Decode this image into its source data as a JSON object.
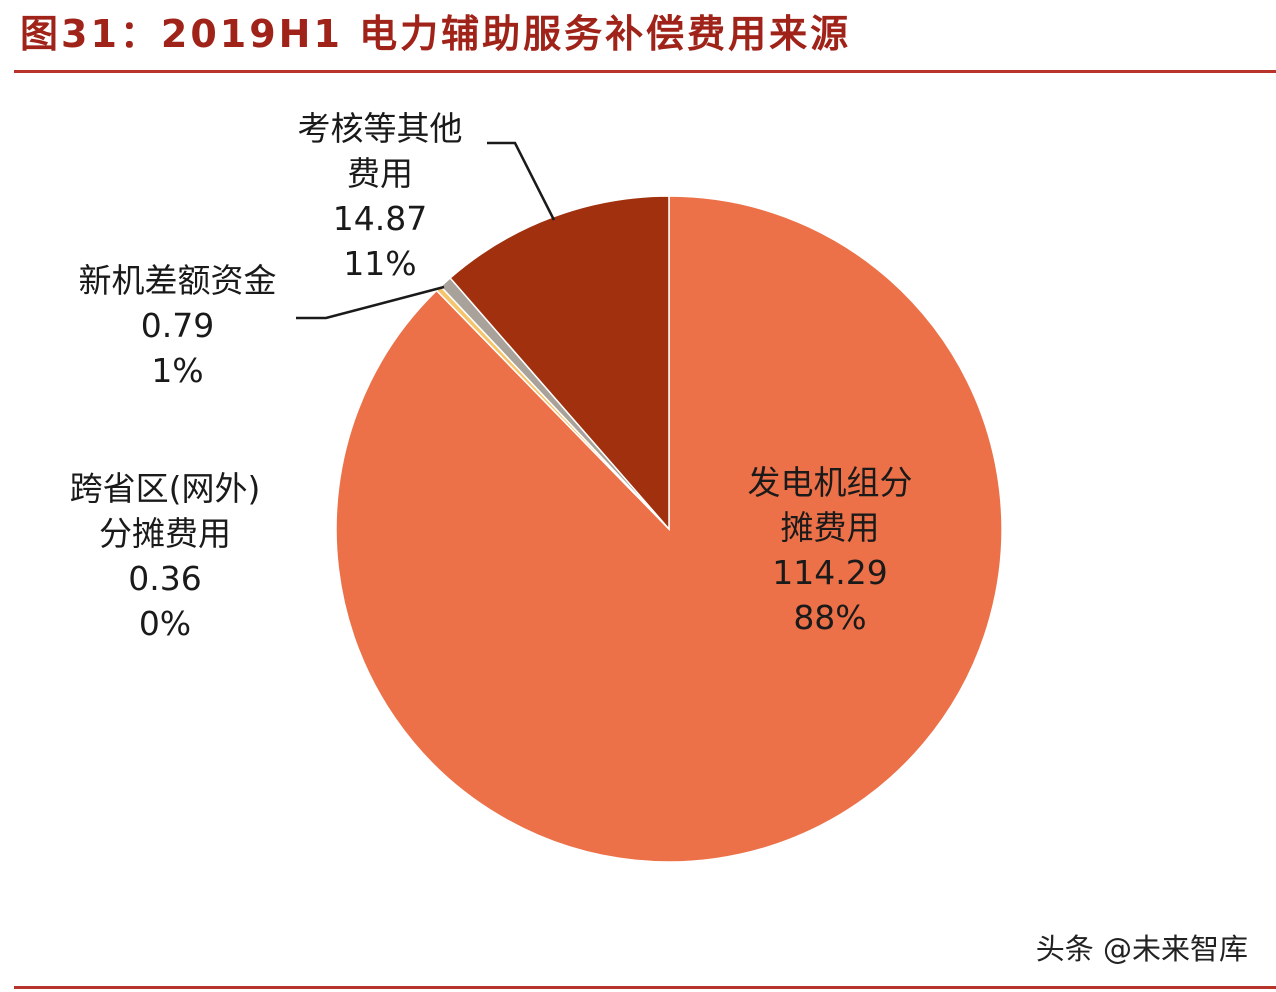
{
  "figure": {
    "title": "图31：2019H1 电力辅助服务补偿费用来源"
  },
  "watermark": "头条 @未来智库",
  "chart_data": {
    "type": "pie",
    "title": "图31：2019H1 电力辅助服务补偿费用来源",
    "start_angle_deg": 0,
    "direction": "clockwise",
    "slices": [
      {
        "label_lines": [
          "发电机组分",
          "摊费用"
        ],
        "value": "114.29",
        "percent": "88%",
        "color": "#ec7048"
      },
      {
        "label_lines": [
          "跨省区(网外)",
          "分摊费用"
        ],
        "value": "0.36",
        "percent": "0%",
        "color": "#f6c46a"
      },
      {
        "label_lines": [
          "新机差额资金"
        ],
        "value": "0.79",
        "percent": "1%",
        "color": "#a8a29a"
      },
      {
        "label_lines": [
          "考核等其他",
          "费用"
        ],
        "value": "14.87",
        "percent": "11%",
        "color": "#a0300e"
      }
    ]
  }
}
